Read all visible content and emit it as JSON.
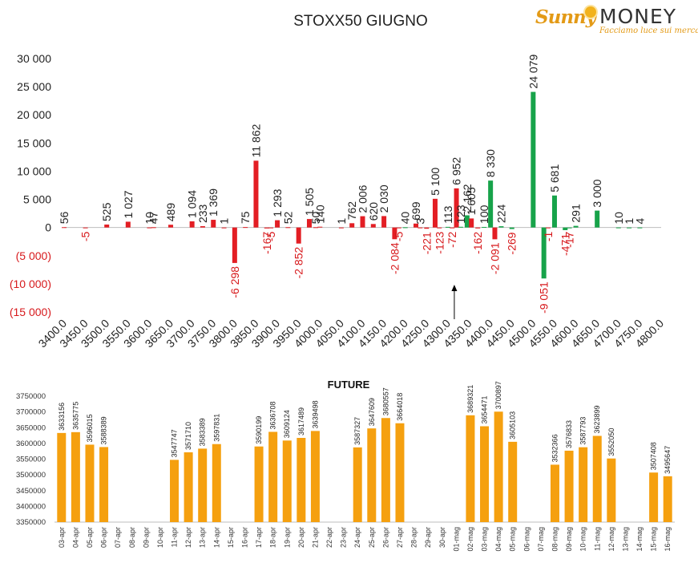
{
  "title": "STOXX50 GIUGNO",
  "logo": {
    "brand_a": "Sunny",
    "brand_b": "MONEY",
    "tagline": "Facciamo luce sui mercati"
  },
  "colors": {
    "red": "#e31e24",
    "green": "#17a34a",
    "orange": "#f5a00f",
    "neg_label": "#d7191c",
    "axis_text": "#222222"
  },
  "chart_data": [
    {
      "type": "bar",
      "y_ticks": [
        {
          "v": 30000,
          "t": "30 000"
        },
        {
          "v": 25000,
          "t": "25 000"
        },
        {
          "v": 20000,
          "t": "20 000"
        },
        {
          "v": 15000,
          "t": "15 000"
        },
        {
          "v": 10000,
          "t": "10 000"
        },
        {
          "v": 5000,
          "t": "5 000"
        },
        {
          "v": 0,
          "t": "0"
        },
        {
          "v": -5000,
          "t": "(5 000)"
        },
        {
          "v": -10000,
          "t": "(10 000)"
        },
        {
          "v": -15000,
          "t": "(15 000)"
        }
      ],
      "ylim": [
        -15000,
        30000
      ],
      "x_ticks": [
        "3400.0",
        "3450.0",
        "3500.0",
        "3550.0",
        "3600.0",
        "3650.0",
        "3700.0",
        "3750.0",
        "3800.0",
        "3850.0",
        "3900.0",
        "3950.0",
        "4000.0",
        "4050.0",
        "4100.0",
        "4150.0",
        "4200.0",
        "4250.0",
        "4300.0",
        "4350.0",
        "4400.0",
        "4450.0",
        "4500.0",
        "4550.0",
        "4600.0",
        "4650.0",
        "4700.0",
        "4750.0",
        "4800.0"
      ],
      "xlim": [
        3400,
        4800
      ],
      "annotation_arrow_x": 4300,
      "bars": [
        {
          "x": 3400,
          "v": 56,
          "label": "56",
          "c": "red"
        },
        {
          "x": 3450,
          "v": -5,
          "label": "-5",
          "c": "red"
        },
        {
          "x": 3500,
          "v": 525,
          "label": "525",
          "c": "red"
        },
        {
          "x": 3550,
          "v": 1027,
          "label": "1 027",
          "c": "red"
        },
        {
          "x": 3600,
          "v": 10,
          "label": "10",
          "c": "red"
        },
        {
          "x": 3610,
          "v": 47,
          "label": "47",
          "c": "red"
        },
        {
          "x": 3650,
          "v": 489,
          "label": "489",
          "c": "red"
        },
        {
          "x": 3700,
          "v": 1094,
          "label": "1 094",
          "c": "red"
        },
        {
          "x": 3725,
          "v": 233,
          "label": "233",
          "c": "red"
        },
        {
          "x": 3750,
          "v": 1369,
          "label": "1 369",
          "c": "red"
        },
        {
          "x": 3775,
          "v": 1,
          "label": "1",
          "c": "red"
        },
        {
          "x": 3800,
          "v": -6298,
          "label": "-6 298",
          "c": "red"
        },
        {
          "x": 3825,
          "v": 75,
          "label": "75",
          "c": "red"
        },
        {
          "x": 3850,
          "v": 11862,
          "label": "11 862",
          "c": "red"
        },
        {
          "x": 3875,
          "v": -167,
          "label": "-167",
          "c": "red"
        },
        {
          "x": 3885,
          "v": -5,
          "label": "-5",
          "c": "red"
        },
        {
          "x": 3900,
          "v": 1293,
          "label": "1 293",
          "c": "red"
        },
        {
          "x": 3925,
          "v": 52,
          "label": "52",
          "c": "red"
        },
        {
          "x": 3950,
          "v": -2852,
          "label": "-2 852",
          "c": "red"
        },
        {
          "x": 3975,
          "v": 1505,
          "label": "1 505",
          "c": "red"
        },
        {
          "x": 3990,
          "v": 50,
          "label": "50",
          "c": "red"
        },
        {
          "x": 4000,
          "v": 140,
          "label": "140",
          "c": "red"
        },
        {
          "x": 4050,
          "v": 1,
          "label": "1",
          "c": "red"
        },
        {
          "x": 4075,
          "v": 762,
          "label": "762",
          "c": "red"
        },
        {
          "x": 4100,
          "v": 2006,
          "label": "2 006",
          "c": "red"
        },
        {
          "x": 4125,
          "v": 620,
          "label": "620",
          "c": "red"
        },
        {
          "x": 4150,
          "v": 2030,
          "label": "2 030",
          "c": "red"
        },
        {
          "x": 4175,
          "v": -2084,
          "label": "-2 084",
          "c": "red"
        },
        {
          "x": 4185,
          "v": -5,
          "label": "-5",
          "c": "red"
        },
        {
          "x": 4200,
          "v": 40,
          "label": "40",
          "c": "green"
        },
        {
          "x": 4225,
          "v": 699,
          "label": "699",
          "c": "red"
        },
        {
          "x": 4235,
          "v": 3,
          "label": "3",
          "c": "red"
        },
        {
          "x": 4250,
          "v": -221,
          "label": "-221",
          "c": "red"
        },
        {
          "x": 4270,
          "v": 5100,
          "label": "5 100",
          "c": "red"
        },
        {
          "x": 4280,
          "v": -123,
          "label": "-123",
          "c": "red"
        },
        {
          "x": 4300,
          "v": 113,
          "label": "113",
          "c": "green"
        },
        {
          "x": 4310,
          "v": -72,
          "label": "-72",
          "c": "red"
        },
        {
          "x": 4320,
          "v": 6952,
          "label": "6 952",
          "c": "red"
        },
        {
          "x": 4330,
          "v": 123,
          "label": "123",
          "c": "green"
        },
        {
          "x": 4345,
          "v": 2162,
          "label": "2 162",
          "c": "green"
        },
        {
          "x": 4355,
          "v": 1605,
          "label": "1 605",
          "c": "red"
        },
        {
          "x": 4370,
          "v": -162,
          "label": "-162",
          "c": "red"
        },
        {
          "x": 4385,
          "v": 100,
          "label": "100",
          "c": "green"
        },
        {
          "x": 4400,
          "v": 8330,
          "label": "8 330",
          "c": "green"
        },
        {
          "x": 4410,
          "v": -2091,
          "label": "-2 091",
          "c": "red"
        },
        {
          "x": 4425,
          "v": 224,
          "label": "224",
          "c": "green"
        },
        {
          "x": 4450,
          "v": -269,
          "label": "-269",
          "c": "green"
        },
        {
          "x": 4500,
          "v": 24079,
          "label": "24 079",
          "c": "green"
        },
        {
          "x": 4525,
          "v": -9051,
          "label": "-9 051",
          "c": "green"
        },
        {
          "x": 4535,
          "v": -1,
          "label": "-1",
          "c": "red"
        },
        {
          "x": 4550,
          "v": 5681,
          "label": "5 681",
          "c": "green"
        },
        {
          "x": 4575,
          "v": -471,
          "label": "-471",
          "c": "green"
        },
        {
          "x": 4585,
          "v": -17,
          "label": "-17",
          "c": "green"
        },
        {
          "x": 4600,
          "v": 291,
          "label": "291",
          "c": "green"
        },
        {
          "x": 4650,
          "v": 3000,
          "label": "3 000",
          "c": "green"
        },
        {
          "x": 4700,
          "v": 10,
          "label": "10",
          "c": "green"
        },
        {
          "x": 4725,
          "v": 1,
          "label": "1",
          "c": "green"
        },
        {
          "x": 4750,
          "v": 4,
          "label": "4",
          "c": "green"
        }
      ]
    },
    {
      "type": "bar",
      "title": "FUTURE",
      "ylim": [
        3350000,
        3750000
      ],
      "y_ticks": [
        "3750000",
        "3700000",
        "3650000",
        "3600000",
        "3550000",
        "3500000",
        "3450000",
        "3400000",
        "3350000"
      ],
      "categories": [
        "03-apr",
        "04-apr",
        "05-apr",
        "06-apr",
        "07-apr",
        "08-apr",
        "09-apr",
        "10-apr",
        "11-apr",
        "12-apr",
        "13-apr",
        "14-apr",
        "15-apr",
        "16-apr",
        "17-apr",
        "18-apr",
        "19-apr",
        "20-apr",
        "21-apr",
        "22-apr",
        "23-apr",
        "24-apr",
        "25-apr",
        "26-apr",
        "27-apr",
        "28-apr",
        "29-apr",
        "30-apr",
        "01-mag",
        "02-mag",
        "03-mag",
        "04-mag",
        "05-mag",
        "06-mag",
        "07-mag",
        "08-mag",
        "09-mag",
        "10-mag",
        "11-mag",
        "12-mag",
        "13-mag",
        "14-mag",
        "15-mag",
        "16-mag"
      ],
      "values": [
        3633156,
        3635775,
        3596015,
        3588389,
        null,
        null,
        null,
        null,
        3547747,
        3571710,
        3583389,
        3597831,
        null,
        null,
        3590199,
        3636708,
        3609124,
        3617489,
        3639498,
        null,
        null,
        3587327,
        3647609,
        3680557,
        3664018,
        null,
        null,
        null,
        null,
        3689321,
        3654471,
        3700897,
        3605103,
        null,
        null,
        3532366,
        3576833,
        3587793,
        3623899,
        3552050,
        null,
        null,
        3507408,
        3495647
      ],
      "labels": [
        "3633156",
        "3635775",
        "3596015",
        "3588389",
        "",
        "",
        "",
        "",
        "3547747",
        "3571710",
        "3583389",
        "3597831",
        "",
        "",
        "3590199",
        "3636708",
        "3609124",
        "3617489",
        "3639498",
        "",
        "",
        "3587327",
        "3647609",
        "3680557",
        "3664018",
        "",
        "",
        "",
        "",
        "3689321",
        "3654471",
        "3700897",
        "3605103",
        "",
        "",
        "3532366",
        "3576833",
        "3587793",
        "3623899",
        "3552050",
        "",
        "",
        "3507408",
        "3495647"
      ]
    }
  ]
}
